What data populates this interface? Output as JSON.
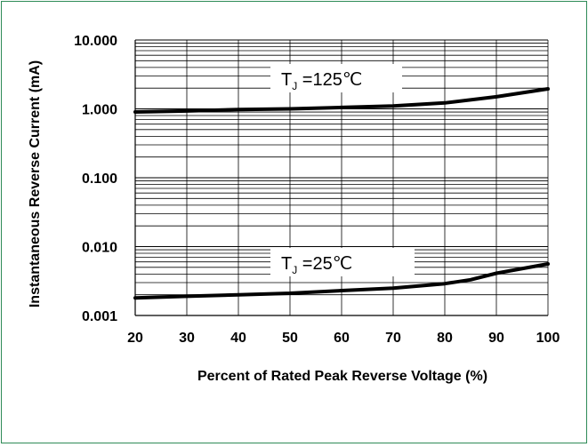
{
  "chart_data": {
    "type": "line",
    "title": "",
    "xlabel": "Percent of Rated Peak Reverse Voltage (%)",
    "ylabel": "Instantaneous Reverse Current (mA)",
    "x_ticks": [
      "20",
      "30",
      "40",
      "50",
      "60",
      "70",
      "80",
      "90",
      "100"
    ],
    "y_ticks": [
      "10.000",
      "1.000",
      "0.100",
      "0.010",
      "0.001"
    ],
    "xlim": [
      20,
      100
    ],
    "ylim": [
      0.001,
      10
    ],
    "y_scale": "log",
    "grid": true,
    "series": [
      {
        "name": "TJ=125℃",
        "label_main": "T",
        "label_sub": "J",
        "label_rest": " =125℃",
        "x": [
          20,
          30,
          40,
          50,
          60,
          70,
          80,
          90,
          100
        ],
        "y": [
          0.9,
          0.93,
          0.98,
          1.0,
          1.05,
          1.1,
          1.22,
          1.5,
          1.95
        ]
      },
      {
        "name": "TJ=25℃",
        "label_main": "T",
        "label_sub": "J",
        "label_rest": " =25℃",
        "x": [
          20,
          30,
          40,
          50,
          60,
          70,
          80,
          85,
          90,
          100
        ],
        "y": [
          0.0018,
          0.0019,
          0.002,
          0.0021,
          0.0023,
          0.0025,
          0.0029,
          0.0033,
          0.0041,
          0.0056
        ]
      }
    ]
  },
  "colors": {
    "frame": "#2e8b57",
    "line": "#000000",
    "grid": "#000000"
  }
}
